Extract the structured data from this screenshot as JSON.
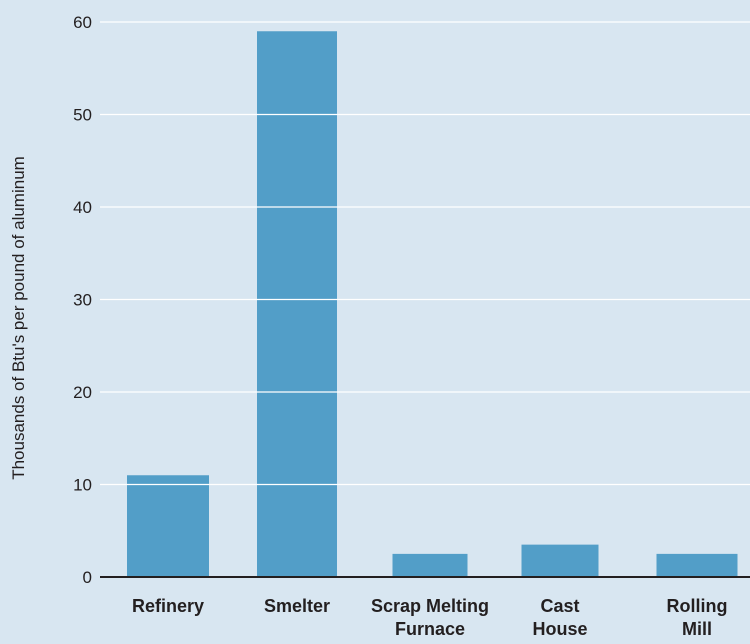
{
  "chart_data": {
    "type": "bar",
    "categories": [
      [
        "Refinery"
      ],
      [
        "Smelter"
      ],
      [
        "Scrap Melting",
        "Furnace"
      ],
      [
        "Cast",
        "House"
      ],
      [
        "Rolling",
        "Mill"
      ]
    ],
    "values": [
      11,
      59,
      2.5,
      3.5,
      2.5
    ],
    "title": "",
    "xlabel": "",
    "ylabel": "Thousands of Btu's per pound of aluminum",
    "ylim": [
      0,
      60
    ],
    "yticks": [
      0,
      10,
      20,
      30,
      40,
      50,
      60
    ],
    "grid": true,
    "colors": {
      "background": "#d8e6f1",
      "bar": "#529ec8",
      "gridline": "#ffffff",
      "axis": "#231f20"
    }
  }
}
